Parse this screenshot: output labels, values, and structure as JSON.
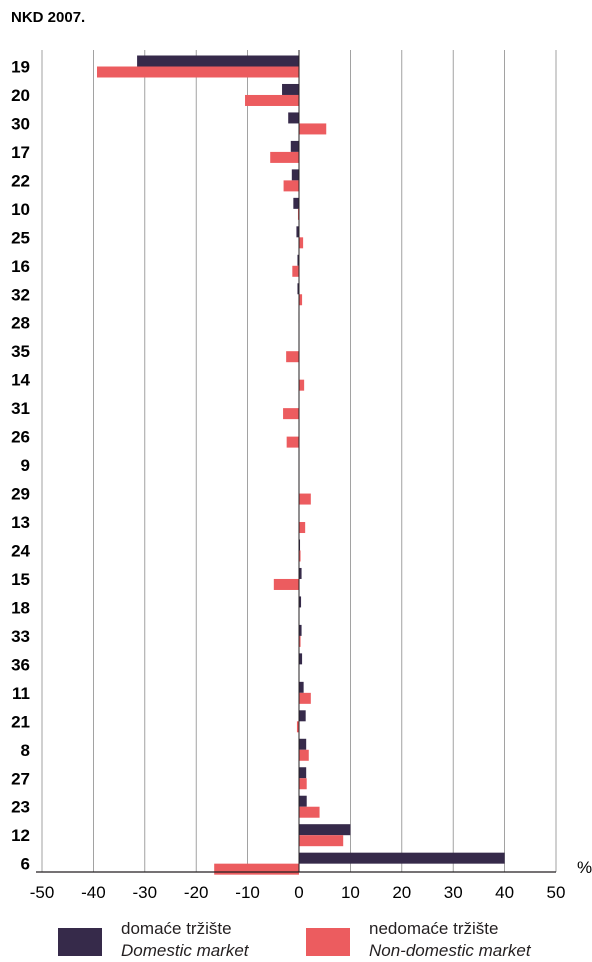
{
  "title": "NKD 2007.",
  "chart_data": {
    "type": "bar",
    "orientation": "horizontal",
    "title": "NKD 2007.",
    "unit": "%",
    "xlim": [
      -50,
      50
    ],
    "xticks": [
      -50,
      -40,
      -30,
      -20,
      -10,
      0,
      10,
      20,
      30,
      40,
      50
    ],
    "grid": "vertical",
    "categories": [
      "19",
      "20",
      "30",
      "17",
      "22",
      "10",
      "25",
      "16",
      "32",
      "28",
      "35",
      "14",
      "31",
      "26",
      "9",
      "29",
      "13",
      "24",
      "15",
      "18",
      "33",
      "36",
      "11",
      "21",
      "8",
      "27",
      "23",
      "12",
      "6"
    ],
    "series": [
      {
        "name": "domaće tržište / Domestic market",
        "color": "#362a4a",
        "values": [
          -31.5,
          -3.3,
          -2.1,
          -1.6,
          -1.4,
          -1.1,
          -0.5,
          -0.3,
          -0.3,
          -0.1,
          0,
          0,
          0,
          0,
          0,
          0,
          0,
          0.2,
          0.5,
          0.4,
          0.5,
          0.6,
          0.9,
          1.3,
          1.4,
          1.4,
          1.5,
          10.0,
          40.0
        ]
      },
      {
        "name": "nedomaće tržište / Non-domestic market",
        "color": "#ec5c5f",
        "values": [
          -39.3,
          -10.5,
          5.3,
          -5.6,
          -3.0,
          -0.2,
          0.8,
          -1.3,
          0.6,
          0,
          -2.5,
          1.0,
          -3.1,
          -2.4,
          0,
          2.3,
          1.2,
          0.3,
          -4.9,
          0,
          0.3,
          0,
          2.3,
          -0.4,
          1.9,
          1.5,
          4.0,
          8.6,
          -16.5
        ]
      }
    ],
    "legend_placement": "bottom"
  },
  "legend": {
    "domestic": {
      "label_hr": "domaće tržište",
      "label_en": "Domestic market",
      "color": "#362a4a"
    },
    "non_domestic": {
      "label_hr": "nedomaće tržište",
      "label_en": "Non-domestic market",
      "color": "#ec5c5f"
    }
  }
}
